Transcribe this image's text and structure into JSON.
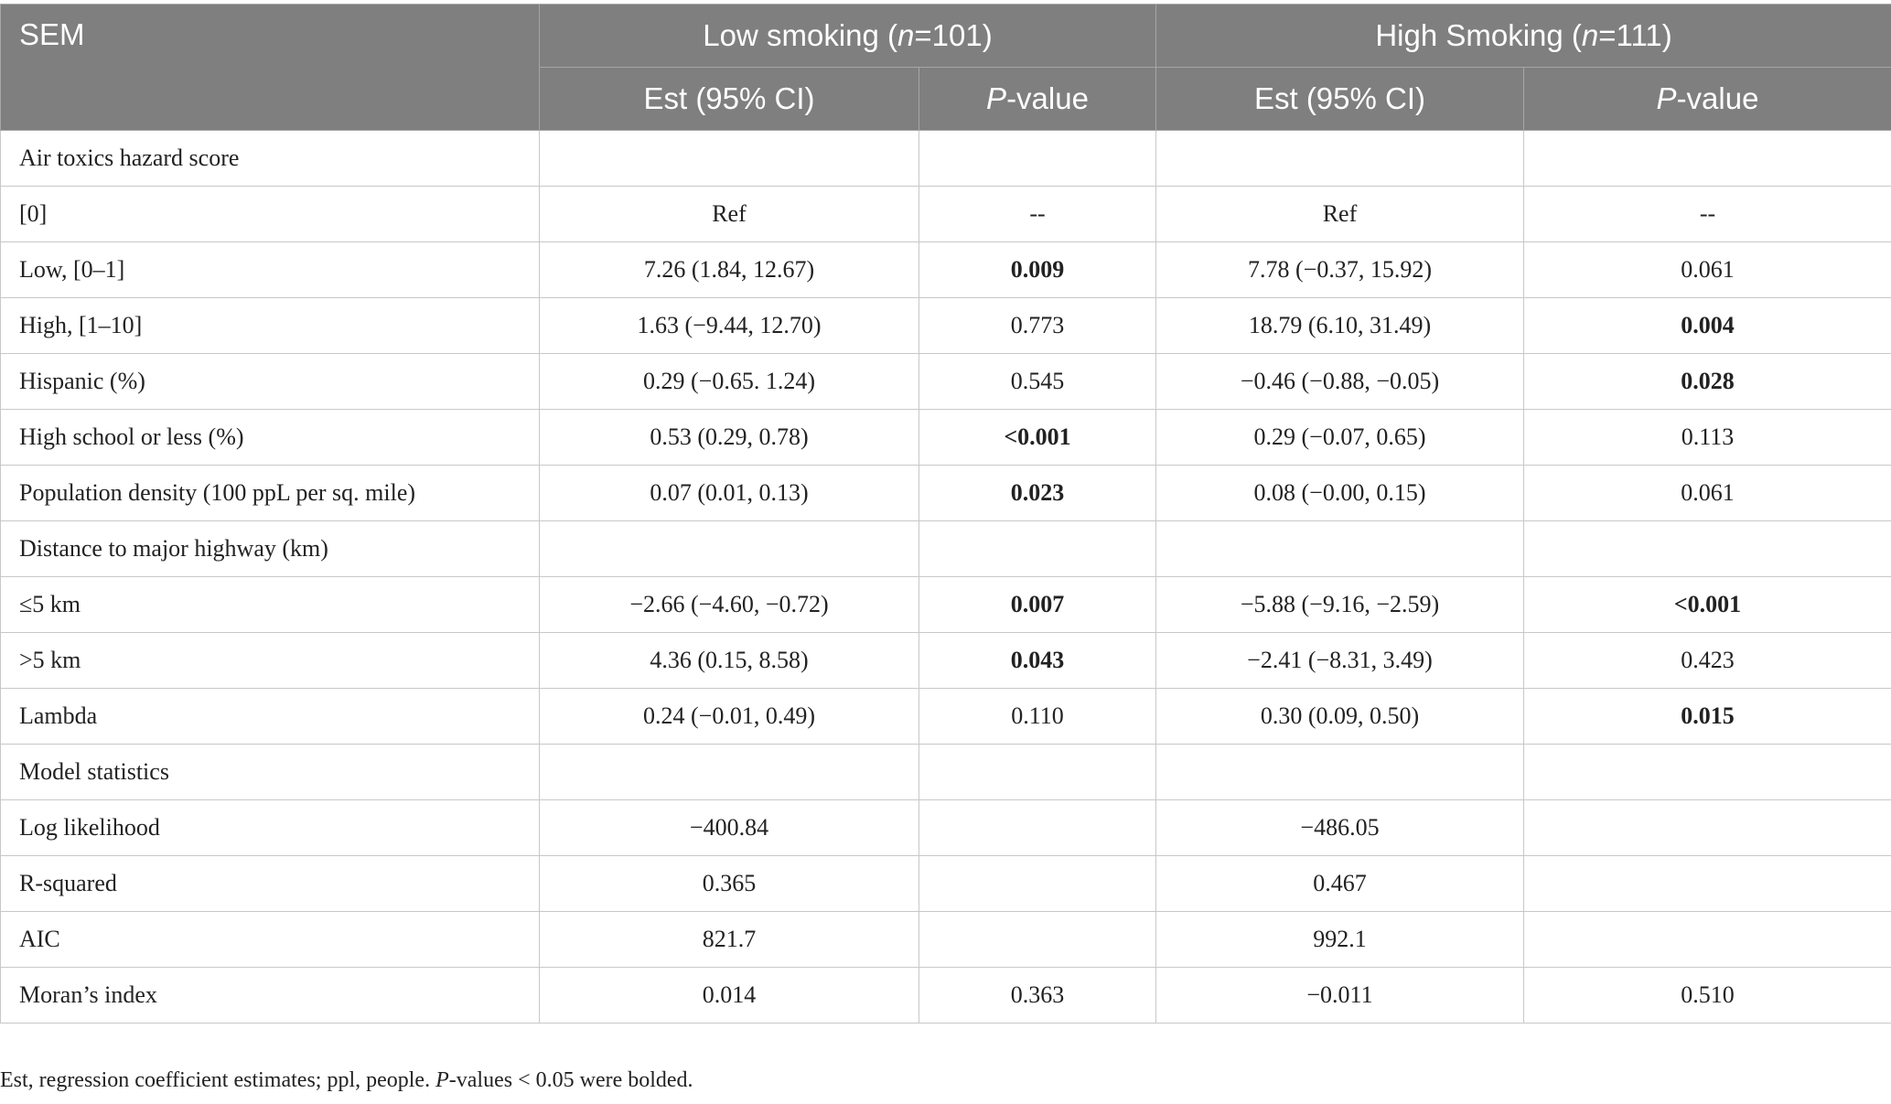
{
  "table": {
    "header": {
      "corner": "SEM",
      "groups": [
        [
          "Low smoking (",
          "n",
          "=101)"
        ],
        [
          "High Smoking (",
          "n",
          "=111)"
        ]
      ],
      "subheaders": [
        [
          "Est (95% CI)"
        ],
        [
          "",
          "P",
          "-value"
        ],
        [
          "Est (95% CI)"
        ],
        [
          "",
          "P",
          "-value"
        ]
      ]
    },
    "rows": [
      [
        "Air toxics hazard score",
        null,
        null,
        null,
        null
      ],
      [
        "[0]",
        "Ref",
        "--",
        "Ref",
        "--"
      ],
      [
        "Low, [0–1]",
        "7.26 (1.84, 12.67)",
        {
          "text": "0.009",
          "bold": true
        },
        "7.78 (−0.37, 15.92)",
        "0.061"
      ],
      [
        "High, [1–10]",
        "1.63 (−9.44, 12.70)",
        "0.773",
        "18.79 (6.10, 31.49)",
        {
          "text": "0.004",
          "bold": true
        }
      ],
      [
        "Hispanic (%)",
        "0.29 (−0.65. 1.24)",
        "0.545",
        "−0.46 (−0.88, −0.05)",
        {
          "text": "0.028",
          "bold": true
        }
      ],
      [
        "High school or less (%)",
        "0.53 (0.29, 0.78)",
        {
          "text": "<0.001",
          "bold": true
        },
        "0.29 (−0.07, 0.65)",
        "0.113"
      ],
      [
        "Population density (100 ppL per sq. mile)",
        "0.07 (0.01, 0.13)",
        {
          "text": "0.023",
          "bold": true
        },
        "0.08 (−0.00, 0.15)",
        "0.061"
      ],
      [
        "Distance to major highway (km)",
        null,
        null,
        null,
        null
      ],
      [
        "≤5 km",
        "−2.66 (−4.60, −0.72)",
        {
          "text": "0.007",
          "bold": true
        },
        "−5.88 (−9.16, −2.59)",
        {
          "text": "<0.001",
          "bold": true
        }
      ],
      [
        ">5 km",
        "4.36 (0.15, 8.58)",
        {
          "text": "0.043",
          "bold": true
        },
        "−2.41 (−8.31, 3.49)",
        "0.423"
      ],
      [
        "Lambda",
        "0.24 (−0.01, 0.49)",
        "0.110",
        "0.30 (0.09, 0.50)",
        {
          "text": "0.015",
          "bold": true
        }
      ],
      [
        "Model statistics",
        null,
        null,
        null,
        null
      ],
      [
        "Log likelihood",
        "−400.84",
        null,
        "−486.05",
        null
      ],
      [
        "R-squared",
        "0.365",
        null,
        "0.467",
        null
      ],
      [
        "AIC",
        "821.7",
        null,
        "992.1",
        null
      ],
      [
        "Moran’s index",
        "0.014",
        "0.363",
        "−0.011",
        "0.510"
      ]
    ],
    "footnote": [
      "Est, regression coefficient estimates; ppl, people. ",
      "P",
      "-values < 0.05 were bolded."
    ]
  }
}
